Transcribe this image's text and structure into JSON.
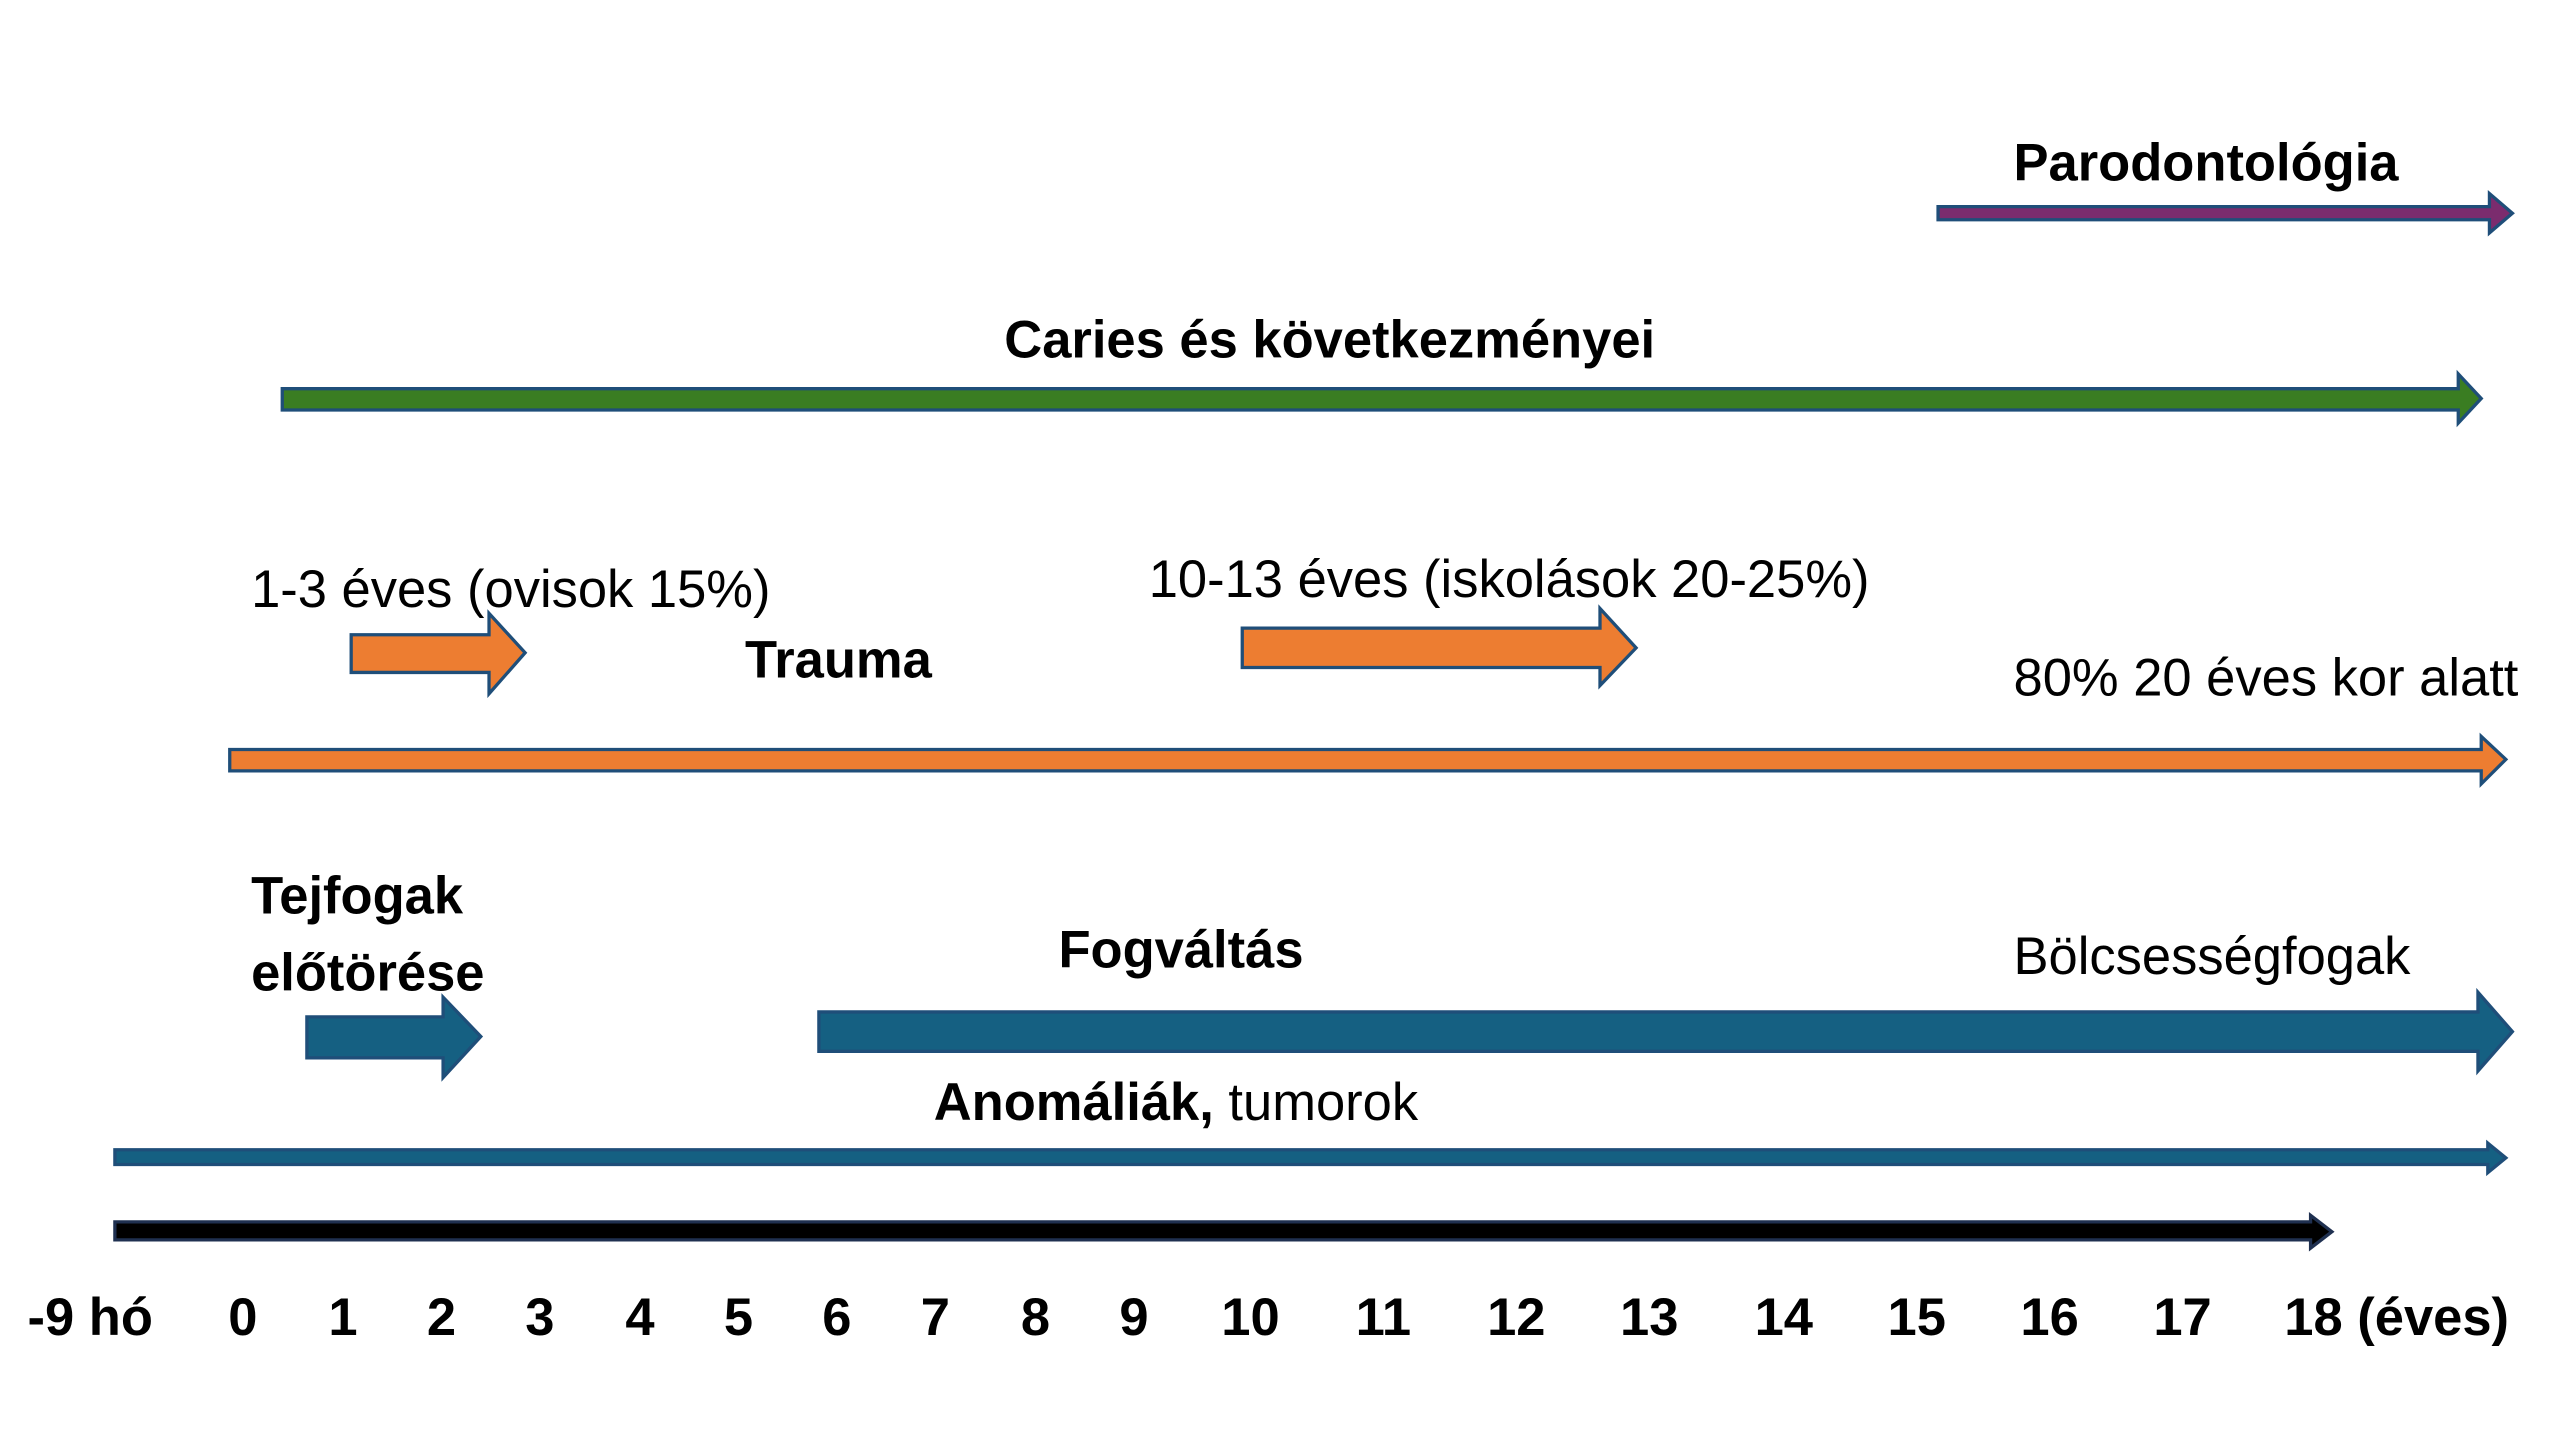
{
  "title_parodontologia": "Parodontológia",
  "title_caries": "Caries és következményei",
  "trauma": {
    "label": "Trauma",
    "note_1": "1-3 éves (ovisok 15%)",
    "note_2": "10-13 éves (iskolások 20-25%)",
    "note_3": "80% 20 éves kor alatt"
  },
  "teeth": {
    "eruption_line_1": "Tejfogak",
    "eruption_line_2": "előtörése",
    "change": "Fogváltás",
    "wisdom": "Bölcsességfogak"
  },
  "anomalies": {
    "bold": "Anomáliák,",
    "regular": "tumorok"
  },
  "timeline_labels": [
    "-9 hó",
    "0",
    "1",
    "2",
    "3",
    "4",
    "5",
    "6",
    "7",
    "8",
    "9",
    "10",
    "11",
    "12",
    "13",
    "14",
    "15",
    "16",
    "17",
    "18 (éves)"
  ]
}
